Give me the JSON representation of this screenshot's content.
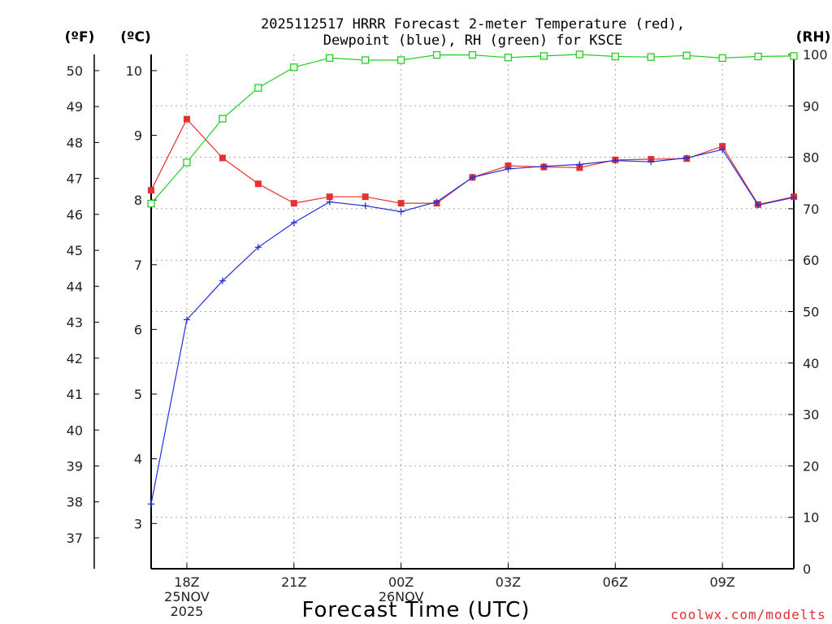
{
  "chart_data": {
    "type": "line",
    "title_line1": "2025112517 HRRR Forecast 2-meter Temperature (red),",
    "title_line2": "Dewpoint (blue), RH (green) for KSCE",
    "xlabel": "Forecast Time (UTC)",
    "credit": "coolwx.com/modelts",
    "units": {
      "fahrenheit": "(ºF)",
      "celsius": "(ºC)",
      "rh": "(RH)"
    },
    "x_hours": [
      17,
      18,
      19,
      20,
      21,
      22,
      23,
      24,
      25,
      26,
      27,
      28,
      29,
      30,
      31,
      32,
      33,
      34,
      35
    ],
    "x_range": [
      17,
      35
    ],
    "x_ticks": [
      {
        "hour": 18,
        "lines": [
          "18Z",
          "25NOV",
          "2025"
        ]
      },
      {
        "hour": 21,
        "lines": [
          "21Z"
        ]
      },
      {
        "hour": 24,
        "lines": [
          "00Z",
          "26NOV"
        ]
      },
      {
        "hour": 27,
        "lines": [
          "03Z"
        ]
      },
      {
        "hour": 30,
        "lines": [
          "06Z"
        ]
      },
      {
        "hour": 33,
        "lines": [
          "09Z"
        ]
      }
    ],
    "celsius_range": [
      2.3,
      10.25
    ],
    "celsius_ticks": [
      "3",
      "4",
      "5",
      "6",
      "7",
      "8",
      "9",
      "10"
    ],
    "fahrenheit_ticks": [
      "37",
      "38",
      "39",
      "40",
      "41",
      "42",
      "43",
      "44",
      "45",
      "46",
      "47",
      "48",
      "49",
      "50"
    ],
    "rh_range": [
      0,
      100
    ],
    "rh_ticks": [
      "0",
      "10",
      "20",
      "30",
      "40",
      "50",
      "60",
      "70",
      "80",
      "90",
      "100"
    ],
    "series": [
      {
        "name": "Temperature",
        "unit": "C",
        "color": "#e83030",
        "marker": "filled-square",
        "values": [
          8.15,
          9.25,
          8.65,
          8.25,
          7.95,
          8.05,
          8.05,
          7.95,
          7.95,
          8.35,
          8.53,
          8.51,
          8.5,
          8.62,
          8.63,
          8.64,
          8.83,
          7.93,
          8.05
        ]
      },
      {
        "name": "Dewpoint",
        "unit": "C",
        "color": "#2030e0",
        "marker": "plus",
        "values": [
          3.3,
          6.15,
          6.75,
          7.27,
          7.65,
          7.97,
          7.91,
          7.82,
          7.97,
          8.35,
          8.48,
          8.52,
          8.55,
          8.61,
          8.59,
          8.65,
          8.78,
          7.92,
          8.04
        ]
      },
      {
        "name": "RH",
        "unit": "%",
        "color": "#20d020",
        "marker": "open-square",
        "values": [
          71,
          79,
          87.5,
          93.5,
          97.5,
          99.3,
          98.9,
          98.9,
          99.9,
          99.9,
          99.4,
          99.7,
          100,
          99.6,
          99.5,
          99.8,
          99.3,
          99.6,
          99.7
        ]
      }
    ]
  }
}
